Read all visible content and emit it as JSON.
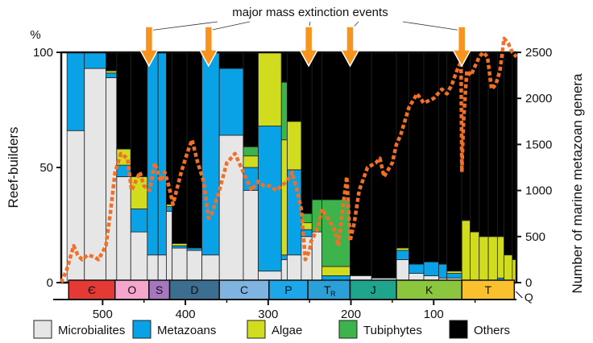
{
  "chart_data": {
    "type": "bar",
    "subtype": "stacked-100",
    "title": "",
    "annotation": "major mass extinction events",
    "ylabel_left": "Reef-builders",
    "ylabel_left_unit": "%",
    "ylabel_right": "Number of marine metazoan genera",
    "xlabel": "",
    "xlim": [
      550,
      0
    ],
    "ylim_left": [
      0,
      100
    ],
    "ylim_right": [
      0,
      2500
    ],
    "x_ticks": [
      500,
      400,
      300,
      200,
      100
    ],
    "y_left_ticks": [
      0,
      50,
      100
    ],
    "y_right_ticks": [
      0,
      500,
      1000,
      1500,
      2000,
      2500
    ],
    "series_names": [
      "Microbialites",
      "Metazoans",
      "Algae",
      "Tubiphytes",
      "Others"
    ],
    "colors": {
      "Microbialites": "#e6e6e6",
      "Metazoans": "#0aa2e6",
      "Algae": "#d2dc1e",
      "Tubiphytes": "#3cb44b",
      "Others": "#000000",
      "diversity_curve": "#f07028",
      "extinction_arrow": "#f7941d"
    },
    "bars": [
      {
        "x0": 543,
        "x1": 522,
        "values": [
          66,
          34,
          0,
          0,
          0
        ]
      },
      {
        "x0": 522,
        "x1": 496,
        "values": [
          93,
          7,
          0,
          0,
          0
        ]
      },
      {
        "x0": 496,
        "x1": 483,
        "values": [
          89,
          2,
          1,
          0,
          8
        ]
      },
      {
        "x0": 483,
        "x1": 466,
        "values": [
          46,
          5,
          7,
          0,
          42
        ]
      },
      {
        "x0": 466,
        "x1": 446,
        "values": [
          22,
          10,
          14,
          0,
          54
        ]
      },
      {
        "x0": 446,
        "x1": 433,
        "values": [
          12,
          88,
          0,
          0,
          0
        ]
      },
      {
        "x0": 433,
        "x1": 423,
        "values": [
          12,
          88,
          0,
          0,
          0
        ]
      },
      {
        "x0": 423,
        "x1": 416,
        "values": [
          31,
          2,
          1,
          0,
          66
        ]
      },
      {
        "x0": 416,
        "x1": 398,
        "values": [
          15,
          1,
          1,
          0,
          83
        ]
      },
      {
        "x0": 398,
        "x1": 380,
        "values": [
          14,
          1,
          0,
          0,
          85
        ]
      },
      {
        "x0": 380,
        "x1": 359,
        "values": [
          12,
          88,
          0,
          0,
          0
        ]
      },
      {
        "x0": 359,
        "x1": 330,
        "values": [
          64,
          29,
          0,
          0,
          7
        ]
      },
      {
        "x0": 330,
        "x1": 312,
        "values": [
          40,
          10,
          5,
          4,
          41
        ]
      },
      {
        "x0": 312,
        "x1": 284,
        "values": [
          5,
          63,
          32,
          0,
          0
        ]
      },
      {
        "x0": 284,
        "x1": 277,
        "values": [
          10,
          2,
          50,
          25,
          13
        ]
      },
      {
        "x0": 277,
        "x1": 260,
        "values": [
          12,
          37,
          21,
          0,
          30
        ]
      },
      {
        "x0": 260,
        "x1": 247,
        "values": [
          20,
          3,
          3,
          4,
          70
        ]
      },
      {
        "x0": 247,
        "x1": 235,
        "values": [
          22,
          0,
          0,
          14,
          64
        ]
      },
      {
        "x0": 235,
        "x1": 201,
        "values": [
          0,
          3,
          4,
          29,
          64
        ]
      },
      {
        "x0": 201,
        "x1": 175,
        "values": [
          3,
          0,
          0,
          0,
          97
        ]
      },
      {
        "x0": 175,
        "x1": 145,
        "values": [
          2,
          0,
          0,
          0,
          98
        ]
      },
      {
        "x0": 145,
        "x1": 130,
        "values": [
          10,
          4,
          1,
          0,
          85
        ]
      },
      {
        "x0": 130,
        "x1": 112,
        "values": [
          4,
          4,
          0,
          0,
          92
        ]
      },
      {
        "x0": 112,
        "x1": 94,
        "values": [
          3,
          6,
          0,
          0,
          91
        ]
      },
      {
        "x0": 94,
        "x1": 84,
        "values": [
          2,
          6,
          0,
          0,
          92
        ]
      },
      {
        "x0": 84,
        "x1": 66,
        "values": [
          2,
          2,
          1,
          0,
          95
        ]
      },
      {
        "x0": 66,
        "x1": 56,
        "values": [
          0,
          0,
          27,
          0,
          73
        ]
      },
      {
        "x0": 56,
        "x1": 45,
        "values": [
          0,
          0,
          22,
          0,
          78
        ]
      },
      {
        "x0": 45,
        "x1": 34,
        "values": [
          0,
          0,
          20,
          0,
          80
        ]
      },
      {
        "x0": 34,
        "x1": 23,
        "values": [
          0,
          0,
          20,
          0,
          80
        ]
      },
      {
        "x0": 23,
        "x1": 15,
        "values": [
          0,
          2,
          18,
          0,
          80
        ]
      },
      {
        "x0": 15,
        "x1": 5,
        "values": [
          0,
          0,
          12,
          0,
          88
        ]
      },
      {
        "x0": 5,
        "x1": 0,
        "values": [
          0,
          0,
          10,
          0,
          90
        ]
      }
    ],
    "diversity_curve": {
      "name": "marine metazoan genera",
      "x": [
        550,
        543,
        535,
        530,
        525,
        518,
        510,
        505,
        496,
        490,
        485,
        478,
        470,
        465,
        455,
        450,
        443,
        437,
        430,
        425,
        420,
        415,
        405,
        398,
        392,
        385,
        378,
        372,
        368,
        359,
        350,
        340,
        330,
        320,
        312,
        305,
        298,
        290,
        284,
        277,
        271,
        265,
        260,
        255,
        250,
        248,
        245,
        240,
        235,
        228,
        221,
        215,
        210,
        205,
        201,
        196,
        190,
        180,
        170,
        165,
        160,
        150,
        145,
        140,
        130,
        120,
        112,
        100,
        90,
        84,
        78,
        72,
        67,
        66,
        64,
        60,
        55,
        50,
        45,
        40,
        35,
        30,
        25,
        20,
        15,
        10,
        5,
        0
      ],
      "values": [
        0,
        150,
        400,
        300,
        250,
        300,
        280,
        250,
        400,
        800,
        1200,
        1400,
        1350,
        1000,
        1200,
        1050,
        1000,
        1300,
        1100,
        1200,
        1050,
        850,
        1200,
        1400,
        1550,
        1300,
        1100,
        700,
        750,
        1000,
        1300,
        1400,
        1200,
        1000,
        1100,
        1050,
        1050,
        1000,
        1050,
        1100,
        1200,
        1000,
        800,
        250,
        350,
        450,
        500,
        600,
        800,
        700,
        600,
        400,
        800,
        1150,
        450,
        650,
        1000,
        1250,
        1300,
        1350,
        1150,
        1300,
        1500,
        1600,
        1900,
        2050,
        1950,
        2000,
        2100,
        2050,
        2150,
        2300,
        2400,
        1200,
        1750,
        2300,
        2250,
        2350,
        2450,
        2500,
        2450,
        2100,
        2150,
        2300,
        2650,
        2600,
        2500,
        2450
      ]
    },
    "extinction_events_ma": [
      444,
      372,
      251,
      201,
      66
    ],
    "periods": [
      {
        "label": "Є",
        "start": 541,
        "end": 485,
        "color": "#e53935"
      },
      {
        "label": "O",
        "start": 485,
        "end": 444,
        "color": "#f4a6cd"
      },
      {
        "label": "S",
        "start": 444,
        "end": 419,
        "color": "#a776c0"
      },
      {
        "label": "D",
        "start": 419,
        "end": 359,
        "color": "#3c6e91"
      },
      {
        "label": "C",
        "start": 359,
        "end": 299,
        "color": "#7fb4e0"
      },
      {
        "label": "P",
        "start": 299,
        "end": 252,
        "color": "#1ea7e8"
      },
      {
        "label": "Tr",
        "start": 252,
        "end": 201,
        "color": "#2a9fd8"
      },
      {
        "label": "J",
        "start": 201,
        "end": 145,
        "color": "#1fa58c"
      },
      {
        "label": "K",
        "start": 145,
        "end": 66,
        "color": "#8cc63f"
      },
      {
        "label": "T",
        "start": 66,
        "end": 2.6,
        "color": "#fbc02d"
      }
    ],
    "quaternary_label": "Q",
    "legend": [
      {
        "label": "Microbialites",
        "series": "Microbialites"
      },
      {
        "label": "Metazoans",
        "series": "Metazoans"
      },
      {
        "label": "Algae",
        "series": "Algae"
      },
      {
        "label": "Tubiphytes",
        "series": "Tubiphytes"
      },
      {
        "label": "Others",
        "series": "Others"
      }
    ]
  }
}
